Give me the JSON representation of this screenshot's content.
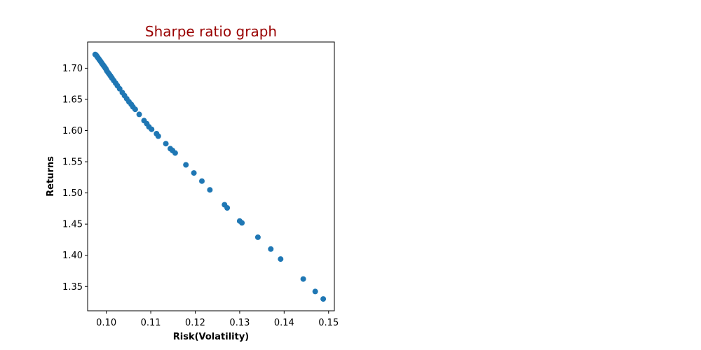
{
  "chart_data": {
    "type": "scatter",
    "title": "Sharpe ratio graph",
    "title_color": "#990000",
    "xlabel": "Risk(Volatility)",
    "ylabel": "Returns",
    "marker_color": "#1f77b4",
    "grid": false,
    "xlim": [
      0.0958,
      0.1513
    ],
    "ylim": [
      1.311,
      1.742
    ],
    "x_ticks": [
      0.1,
      0.11,
      0.12,
      0.13,
      0.14,
      0.15
    ],
    "x_tick_labels": [
      "0.10",
      "0.11",
      "0.12",
      "0.13",
      "0.14",
      "0.15"
    ],
    "y_ticks": [
      1.35,
      1.4,
      1.45,
      1.5,
      1.55,
      1.6,
      1.65,
      1.7
    ],
    "y_tick_labels": [
      "1.35",
      "1.40",
      "1.45",
      "1.50",
      "1.55",
      "1.60",
      "1.65",
      "1.70"
    ],
    "points": [
      [
        0.0975,
        1.722
      ],
      [
        0.0977,
        1.721
      ],
      [
        0.0979,
        1.719
      ],
      [
        0.0981,
        1.717
      ],
      [
        0.0983,
        1.715
      ],
      [
        0.0985,
        1.713
      ],
      [
        0.0987,
        1.711
      ],
      [
        0.0989,
        1.709
      ],
      [
        0.0991,
        1.707
      ],
      [
        0.0993,
        1.705
      ],
      [
        0.0995,
        1.703
      ],
      [
        0.0997,
        1.701
      ],
      [
        0.0999,
        1.699
      ],
      [
        0.1001,
        1.696
      ],
      [
        0.1004,
        1.693
      ],
      [
        0.1007,
        1.69
      ],
      [
        0.101,
        1.687
      ],
      [
        0.1013,
        1.684
      ],
      [
        0.1017,
        1.68
      ],
      [
        0.1021,
        1.676
      ],
      [
        0.1025,
        1.672
      ],
      [
        0.103,
        1.667
      ],
      [
        0.1036,
        1.661
      ],
      [
        0.1041,
        1.656
      ],
      [
        0.1046,
        1.651
      ],
      [
        0.1051,
        1.646
      ],
      [
        0.1056,
        1.642
      ],
      [
        0.106,
        1.638
      ],
      [
        0.1065,
        1.634
      ],
      [
        0.1074,
        1.626
      ],
      [
        0.1085,
        1.616
      ],
      [
        0.1091,
        1.611
      ],
      [
        0.1096,
        1.606
      ],
      [
        0.1102,
        1.602
      ],
      [
        0.1113,
        1.595
      ],
      [
        0.1117,
        1.591
      ],
      [
        0.1134,
        1.579
      ],
      [
        0.1144,
        1.571
      ],
      [
        0.1149,
        1.568
      ],
      [
        0.1155,
        1.564
      ],
      [
        0.1179,
        1.545
      ],
      [
        0.1197,
        1.532
      ],
      [
        0.1215,
        1.519
      ],
      [
        0.1233,
        1.505
      ],
      [
        0.1266,
        1.481
      ],
      [
        0.1272,
        1.476
      ],
      [
        0.13,
        1.455
      ],
      [
        0.1305,
        1.452
      ],
      [
        0.1341,
        1.429
      ],
      [
        0.137,
        1.41
      ],
      [
        0.1392,
        1.394
      ],
      [
        0.1443,
        1.362
      ],
      [
        0.147,
        1.342
      ],
      [
        0.1488,
        1.33
      ]
    ]
  }
}
